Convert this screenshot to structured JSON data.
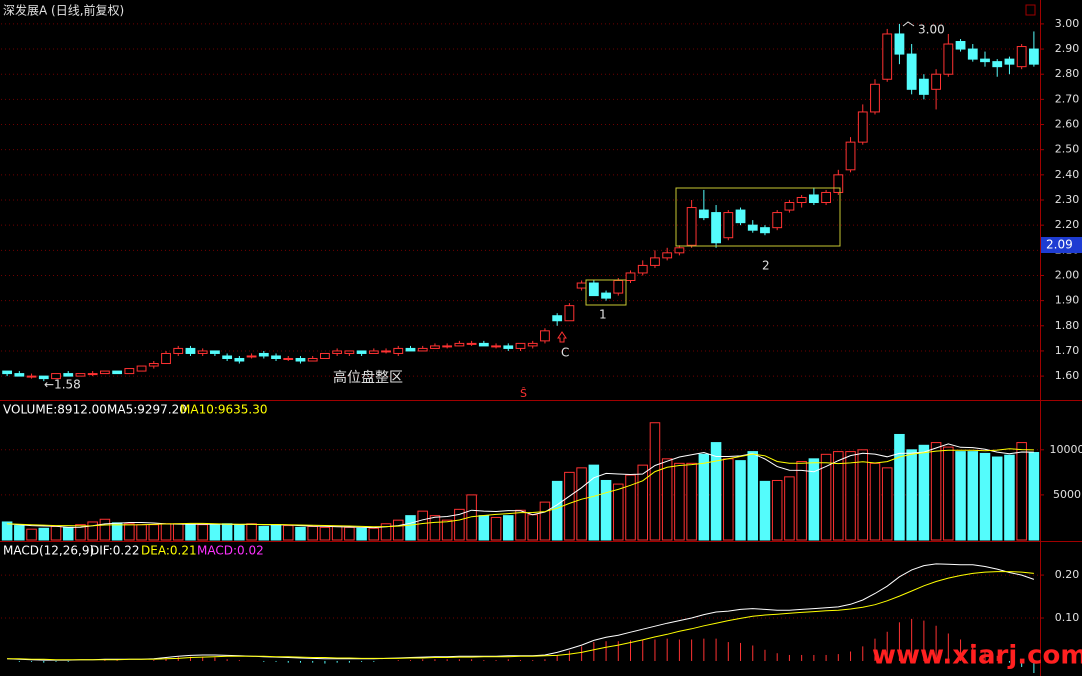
{
  "chart_data": [
    {
      "type": "candlestick",
      "title": "深发展A (日线,前复权)",
      "up_color": "#ff3232",
      "down_color": "#54fcfc",
      "grid": true,
      "ylim": [
        1.505,
        3.095
      ],
      "yticks": [
        {
          "value": 1.6,
          "label": "1.60"
        },
        {
          "value": 1.7,
          "label": "1.70"
        },
        {
          "value": 1.8,
          "label": "1.80"
        },
        {
          "value": 1.9,
          "label": "1.90"
        },
        {
          "value": 2.0,
          "label": "2.00"
        },
        {
          "value": 2.1,
          "label": "2.10"
        },
        {
          "value": 2.2,
          "label": "2.20"
        },
        {
          "value": 2.3,
          "label": "2.30"
        },
        {
          "value": 2.4,
          "label": "2.40"
        },
        {
          "value": 2.5,
          "label": "2.50"
        },
        {
          "value": 2.6,
          "label": "2.60"
        },
        {
          "value": 2.7,
          "label": "2.70"
        },
        {
          "value": 2.8,
          "label": "2.80"
        },
        {
          "value": 2.9,
          "label": "2.90"
        },
        {
          "value": 3.0,
          "label": "3.00"
        }
      ],
      "open": [
        1.62,
        1.61,
        1.6,
        1.6,
        1.59,
        1.61,
        1.6,
        1.61,
        1.61,
        1.62,
        1.61,
        1.62,
        1.64,
        1.65,
        1.69,
        1.71,
        1.69,
        1.7,
        1.68,
        1.67,
        1.68,
        1.69,
        1.68,
        1.67,
        1.67,
        1.66,
        1.67,
        1.69,
        1.69,
        1.7,
        1.69,
        1.7,
        1.69,
        1.71,
        1.7,
        1.71,
        1.72,
        1.72,
        1.73,
        1.73,
        1.72,
        1.72,
        1.71,
        1.72,
        1.74,
        1.84,
        1.82,
        1.95,
        1.97,
        1.93,
        1.93,
        1.98,
        2.01,
        2.04,
        2.07,
        2.09,
        2.12,
        2.26,
        2.25,
        2.15,
        2.26,
        2.2,
        2.19,
        2.19,
        2.26,
        2.29,
        2.32,
        2.29,
        2.33,
        2.42,
        2.53,
        2.65,
        2.78,
        2.96,
        2.88,
        2.78,
        2.74,
        2.8,
        2.93,
        2.9,
        2.86,
        2.85,
        2.86,
        2.83,
        2.9
      ],
      "high": [
        1.62,
        1.62,
        1.61,
        1.6,
        1.61,
        1.62,
        1.61,
        1.62,
        1.62,
        1.62,
        1.63,
        1.64,
        1.66,
        1.7,
        1.72,
        1.72,
        1.71,
        1.7,
        1.69,
        1.68,
        1.69,
        1.7,
        1.69,
        1.68,
        1.68,
        1.68,
        1.69,
        1.71,
        1.7,
        1.7,
        1.71,
        1.71,
        1.72,
        1.72,
        1.72,
        1.73,
        1.73,
        1.74,
        1.74,
        1.74,
        1.73,
        1.73,
        1.73,
        1.74,
        1.79,
        1.85,
        1.89,
        1.98,
        1.98,
        1.94,
        1.99,
        2.02,
        2.06,
        2.1,
        2.11,
        2.12,
        2.3,
        2.34,
        2.28,
        2.26,
        2.27,
        2.22,
        2.2,
        2.26,
        2.3,
        2.32,
        2.35,
        2.34,
        2.42,
        2.55,
        2.68,
        2.78,
        2.98,
        3.0,
        2.92,
        2.8,
        2.82,
        2.96,
        2.94,
        2.92,
        2.89,
        2.86,
        2.87,
        2.92,
        2.97
      ],
      "low": [
        1.6,
        1.6,
        1.59,
        1.58,
        1.59,
        1.6,
        1.6,
        1.6,
        1.61,
        1.61,
        1.61,
        1.62,
        1.63,
        1.65,
        1.68,
        1.68,
        1.68,
        1.68,
        1.66,
        1.65,
        1.67,
        1.67,
        1.66,
        1.66,
        1.65,
        1.66,
        1.67,
        1.68,
        1.68,
        1.68,
        1.69,
        1.69,
        1.68,
        1.7,
        1.7,
        1.71,
        1.71,
        1.72,
        1.72,
        1.72,
        1.71,
        1.7,
        1.7,
        1.71,
        1.73,
        1.8,
        1.82,
        1.94,
        1.92,
        1.9,
        1.92,
        1.97,
        2.0,
        2.03,
        2.06,
        2.08,
        2.11,
        2.22,
        2.11,
        2.14,
        2.2,
        2.17,
        2.16,
        2.18,
        2.25,
        2.27,
        2.28,
        2.28,
        2.32,
        2.41,
        2.52,
        2.64,
        2.77,
        2.84,
        2.72,
        2.7,
        2.66,
        2.79,
        2.89,
        2.85,
        2.83,
        2.79,
        2.8,
        2.82,
        2.83
      ],
      "close": [
        1.61,
        1.6,
        1.6,
        1.59,
        1.61,
        1.6,
        1.61,
        1.61,
        1.62,
        1.61,
        1.63,
        1.64,
        1.65,
        1.69,
        1.71,
        1.69,
        1.7,
        1.69,
        1.67,
        1.66,
        1.68,
        1.68,
        1.67,
        1.67,
        1.66,
        1.67,
        1.69,
        1.7,
        1.7,
        1.69,
        1.7,
        1.7,
        1.71,
        1.7,
        1.71,
        1.72,
        1.72,
        1.73,
        1.73,
        1.72,
        1.72,
        1.71,
        1.73,
        1.73,
        1.78,
        1.82,
        1.88,
        1.97,
        1.92,
        1.91,
        1.98,
        2.01,
        2.04,
        2.07,
        2.09,
        2.11,
        2.27,
        2.23,
        2.13,
        2.25,
        2.21,
        2.18,
        2.17,
        2.25,
        2.29,
        2.31,
        2.29,
        2.33,
        2.4,
        2.53,
        2.65,
        2.76,
        2.96,
        2.88,
        2.74,
        2.72,
        2.8,
        2.92,
        2.9,
        2.86,
        2.85,
        2.83,
        2.84,
        2.91,
        2.84
      ],
      "annotations": {
        "low": "←1.58",
        "high": "3.00",
        "zone": "高位盘整区",
        "breakout": "C",
        "box1": "1",
        "box2": "2",
        "marker": "Ŝ",
        "price_tag": "2.09"
      }
    },
    {
      "type": "volume",
      "title": "VOLUME:8912.00",
      "grid": true,
      "ylim": [
        0,
        15300
      ],
      "yticks": [
        5000,
        10000
      ],
      "values": [
        2000,
        1600,
        1200,
        1300,
        1500,
        1400,
        1700,
        2000,
        2300,
        1900,
        1800,
        1700,
        1700,
        1800,
        1800,
        1700,
        1700,
        1700,
        1800,
        1700,
        1800,
        1500,
        1700,
        1600,
        1400,
        1500,
        1400,
        1500,
        1400,
        1300,
        1300,
        1800,
        2200,
        2700,
        3200,
        2700,
        2200,
        3400,
        5000,
        2700,
        2500,
        2700,
        3300,
        2800,
        4200,
        6500,
        7500,
        8000,
        8300,
        6600,
        6200,
        7200,
        8300,
        13000,
        9000,
        8500,
        8500,
        9500,
        10800,
        9000,
        8800,
        9800,
        6500,
        6600,
        7000,
        8700,
        9000,
        9500,
        9800,
        9800,
        10000,
        8500,
        8000,
        11700,
        10000,
        10500,
        10800,
        10300,
        9800,
        9800,
        9600,
        9200,
        9400,
        10800,
        9700
      ],
      "series": [
        {
          "name": "MA5:9297.20",
          "color": "#ffffff",
          "values": [
            1800,
            1700,
            1600,
            1550,
            1520,
            1400,
            1420,
            1580,
            1780,
            1860,
            1940,
            1940,
            1880,
            1780,
            1760,
            1740,
            1740,
            1740,
            1740,
            1720,
            1740,
            1700,
            1700,
            1660,
            1600,
            1540,
            1520,
            1480,
            1440,
            1420,
            1380,
            1460,
            1600,
            1860,
            2240,
            2520,
            2600,
            2840,
            3300,
            3200,
            3160,
            3260,
            3240,
            2800,
            3100,
            3900,
            4860,
            5800,
            6900,
            7380,
            7320,
            7260,
            7320,
            8260,
            8740,
            9200,
            9460,
            9700,
            9260,
            9260,
            9320,
            9580,
            8980,
            8140,
            7740,
            7720,
            7560,
            8160,
            8800,
            9360,
            9620,
            9520,
            9220,
            9600,
            9640,
            9740,
            10200,
            10660,
            10280,
            10240,
            10060,
            9740,
            9560,
            9760,
            9740
          ]
        },
        {
          "name": "MA10:9635.30",
          "color": "#ffff00",
          "values": [
            1800,
            1750,
            1700,
            1650,
            1600,
            1600,
            1560,
            1590,
            1665,
            1690,
            1670,
            1680,
            1730,
            1780,
            1810,
            1840,
            1840,
            1810,
            1760,
            1740,
            1740,
            1720,
            1720,
            1700,
            1660,
            1640,
            1610,
            1590,
            1550,
            1510,
            1460,
            1490,
            1540,
            1650,
            1830,
            1950,
            2030,
            2220,
            2580,
            2720,
            2840,
            2930,
            3040,
            3050,
            3150,
            3530,
            4060,
            4520,
            4850,
            5240,
            5610,
            6060,
            6560,
            7580,
            8060,
            8260,
            8360,
            8510,
            8760,
            9000,
            9260,
            9520,
            9340,
            8700,
            8500,
            8520,
            8570,
            8570,
            8470,
            8550,
            8670,
            8540,
            8690,
            9200,
            9500,
            9680,
            9860,
            9940,
            9940,
            9940,
            9900,
            9970,
            10110,
            10020,
            9990
          ]
        }
      ]
    },
    {
      "type": "macd",
      "title": "MACD(12,26,9)",
      "grid": true,
      "ylim": [
        -0.035,
        0.277
      ],
      "yticks": [
        {
          "value": 0.1,
          "label": "0.10"
        },
        {
          "value": 0.2,
          "label": "0.20"
        }
      ],
      "series": [
        {
          "name": "DIF:0.22",
          "color": "#ffffff",
          "values": [
            0.005,
            0.004,
            0.003,
            0.002,
            0.002,
            0.002,
            0.003,
            0.003,
            0.004,
            0.004,
            0.004,
            0.004,
            0.005,
            0.008,
            0.011,
            0.013,
            0.014,
            0.014,
            0.013,
            0.012,
            0.011,
            0.01,
            0.009,
            0.008,
            0.007,
            0.006,
            0.005,
            0.005,
            0.005,
            0.005,
            0.005,
            0.006,
            0.007,
            0.008,
            0.009,
            0.01,
            0.01,
            0.011,
            0.011,
            0.011,
            0.011,
            0.012,
            0.012,
            0.012,
            0.014,
            0.02,
            0.028,
            0.037,
            0.048,
            0.055,
            0.06,
            0.067,
            0.074,
            0.081,
            0.088,
            0.094,
            0.1,
            0.108,
            0.114,
            0.116,
            0.12,
            0.122,
            0.12,
            0.118,
            0.118,
            0.12,
            0.122,
            0.124,
            0.126,
            0.132,
            0.142,
            0.157,
            0.174,
            0.196,
            0.212,
            0.222,
            0.226,
            0.225,
            0.224,
            0.224,
            0.22,
            0.214,
            0.206,
            0.2,
            0.19
          ]
        },
        {
          "name": "DEA:0.21",
          "color": "#ffff00",
          "values": [
            0.005,
            0.005,
            0.004,
            0.004,
            0.003,
            0.003,
            0.003,
            0.003,
            0.003,
            0.003,
            0.004,
            0.004,
            0.004,
            0.005,
            0.006,
            0.008,
            0.009,
            0.01,
            0.011,
            0.011,
            0.011,
            0.011,
            0.01,
            0.01,
            0.009,
            0.008,
            0.008,
            0.007,
            0.007,
            0.006,
            0.006,
            0.006,
            0.006,
            0.007,
            0.007,
            0.008,
            0.008,
            0.009,
            0.009,
            0.01,
            0.01,
            0.01,
            0.011,
            0.011,
            0.012,
            0.013,
            0.016,
            0.02,
            0.026,
            0.032,
            0.037,
            0.043,
            0.049,
            0.056,
            0.062,
            0.069,
            0.075,
            0.082,
            0.088,
            0.094,
            0.099,
            0.104,
            0.107,
            0.109,
            0.111,
            0.113,
            0.115,
            0.117,
            0.118,
            0.121,
            0.125,
            0.131,
            0.14,
            0.151,
            0.163,
            0.175,
            0.185,
            0.193,
            0.199,
            0.204,
            0.207,
            0.208,
            0.208,
            0.207,
            0.204
          ]
        }
      ],
      "bars": {
        "name": "MACD:0.02",
        "color": "#ff32ff",
        "up_color": "#ff3232",
        "down_color": "#54fcfc",
        "values": [
          0,
          -0.002,
          -0.002,
          -0.004,
          -0.002,
          -0.002,
          0,
          0,
          0.002,
          0.002,
          0,
          0,
          0.002,
          0.006,
          0.01,
          0.01,
          0.01,
          0.008,
          0.004,
          0.002,
          0,
          -0.002,
          -0.002,
          -0.004,
          -0.004,
          -0.004,
          -0.006,
          -0.004,
          -0.004,
          -0.002,
          -0.002,
          0,
          0.002,
          0.002,
          0.004,
          0.004,
          0.004,
          0.004,
          0.004,
          0.002,
          0.002,
          0.004,
          0.002,
          0.002,
          0.004,
          0.014,
          0.024,
          0.034,
          0.044,
          0.046,
          0.046,
          0.048,
          0.05,
          0.05,
          0.052,
          0.05,
          0.05,
          0.052,
          0.052,
          0.044,
          0.042,
          0.036,
          0.026,
          0.018,
          0.014,
          0.014,
          0.014,
          0.014,
          0.016,
          0.022,
          0.034,
          0.052,
          0.068,
          0.09,
          0.098,
          0.094,
          0.082,
          0.064,
          0.05,
          0.04,
          0.026,
          0.012,
          -0.004,
          -0.014,
          -0.028
        ]
      }
    }
  ],
  "watermark": "www.xiarj.com"
}
